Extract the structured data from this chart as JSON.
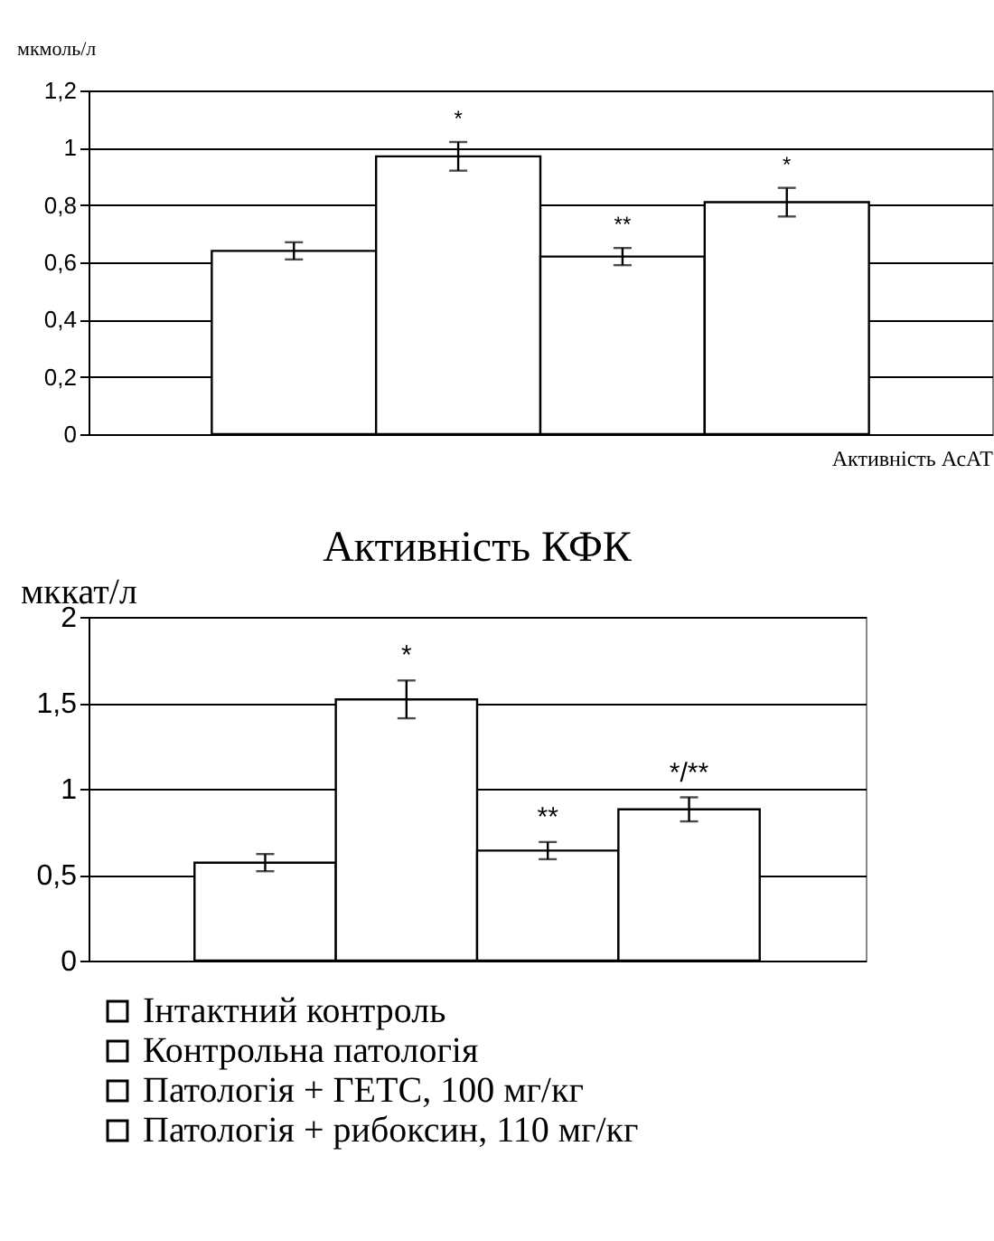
{
  "chart_data": [
    {
      "type": "bar",
      "ylabel": "мкмоль/л",
      "xlabel": "Активність АсАТ",
      "categories": [
        null
      ],
      "ylim": [
        0,
        1.2
      ],
      "yticks": [
        0,
        {
          "value": 0.2,
          "label": "0,2"
        },
        {
          "value": 0.4,
          "label": "0,4"
        },
        {
          "value": 0.6,
          "label": "0,6"
        },
        {
          "value": 0.8,
          "label": "0,8"
        },
        1,
        {
          "value": 1.2,
          "label": "1,2"
        }
      ],
      "grid": "y",
      "series": [
        {
          "color": "#ffffff",
          "values": [
            0.64
          ],
          "errors": [
            0.03
          ],
          "value_labels": [
            null
          ]
        },
        {
          "color": "#ffffff",
          "values": [
            0.97
          ],
          "errors": [
            0.05
          ],
          "value_labels": [
            "*"
          ]
        },
        {
          "color": "#ffffff",
          "values": [
            0.62
          ],
          "errors": [
            0.03
          ],
          "value_labels": [
            "**"
          ]
        },
        {
          "color": "#ffffff",
          "values": [
            0.81
          ],
          "errors": [
            0.05
          ],
          "value_labels": [
            "*"
          ]
        }
      ]
    },
    {
      "type": "bar",
      "title": "Активність КФК",
      "ylabel": "мккат/л",
      "categories": [
        null
      ],
      "ylim": [
        0,
        2
      ],
      "yticks": [
        0,
        {
          "value": 0.5,
          "label": "0,5"
        },
        1,
        {
          "value": 1.5,
          "label": "1,5"
        },
        2
      ],
      "grid": "y",
      "legend": "bottom",
      "series": [
        {
          "name": "Інтактний контроль",
          "color": "#ffffff",
          "values": [
            0.57
          ],
          "errors": [
            0.05
          ],
          "value_labels": [
            null
          ]
        },
        {
          "name": "Контрольна патологія",
          "color": "#ffffff",
          "values": [
            1.52
          ],
          "errors": [
            0.11
          ],
          "value_labels": [
            "*"
          ]
        },
        {
          "name": "Патологія + ГЕТС, 100 мг/кг",
          "color": "#ffffff",
          "values": [
            0.64
          ],
          "errors": [
            0.05
          ],
          "value_labels": [
            "**"
          ]
        },
        {
          "name": "Патологія + рибоксин, 110 мг/кг",
          "color": "#ffffff",
          "values": [
            0.88
          ],
          "errors": [
            0.07
          ],
          "value_labels": [
            "*/**"
          ]
        }
      ]
    }
  ]
}
